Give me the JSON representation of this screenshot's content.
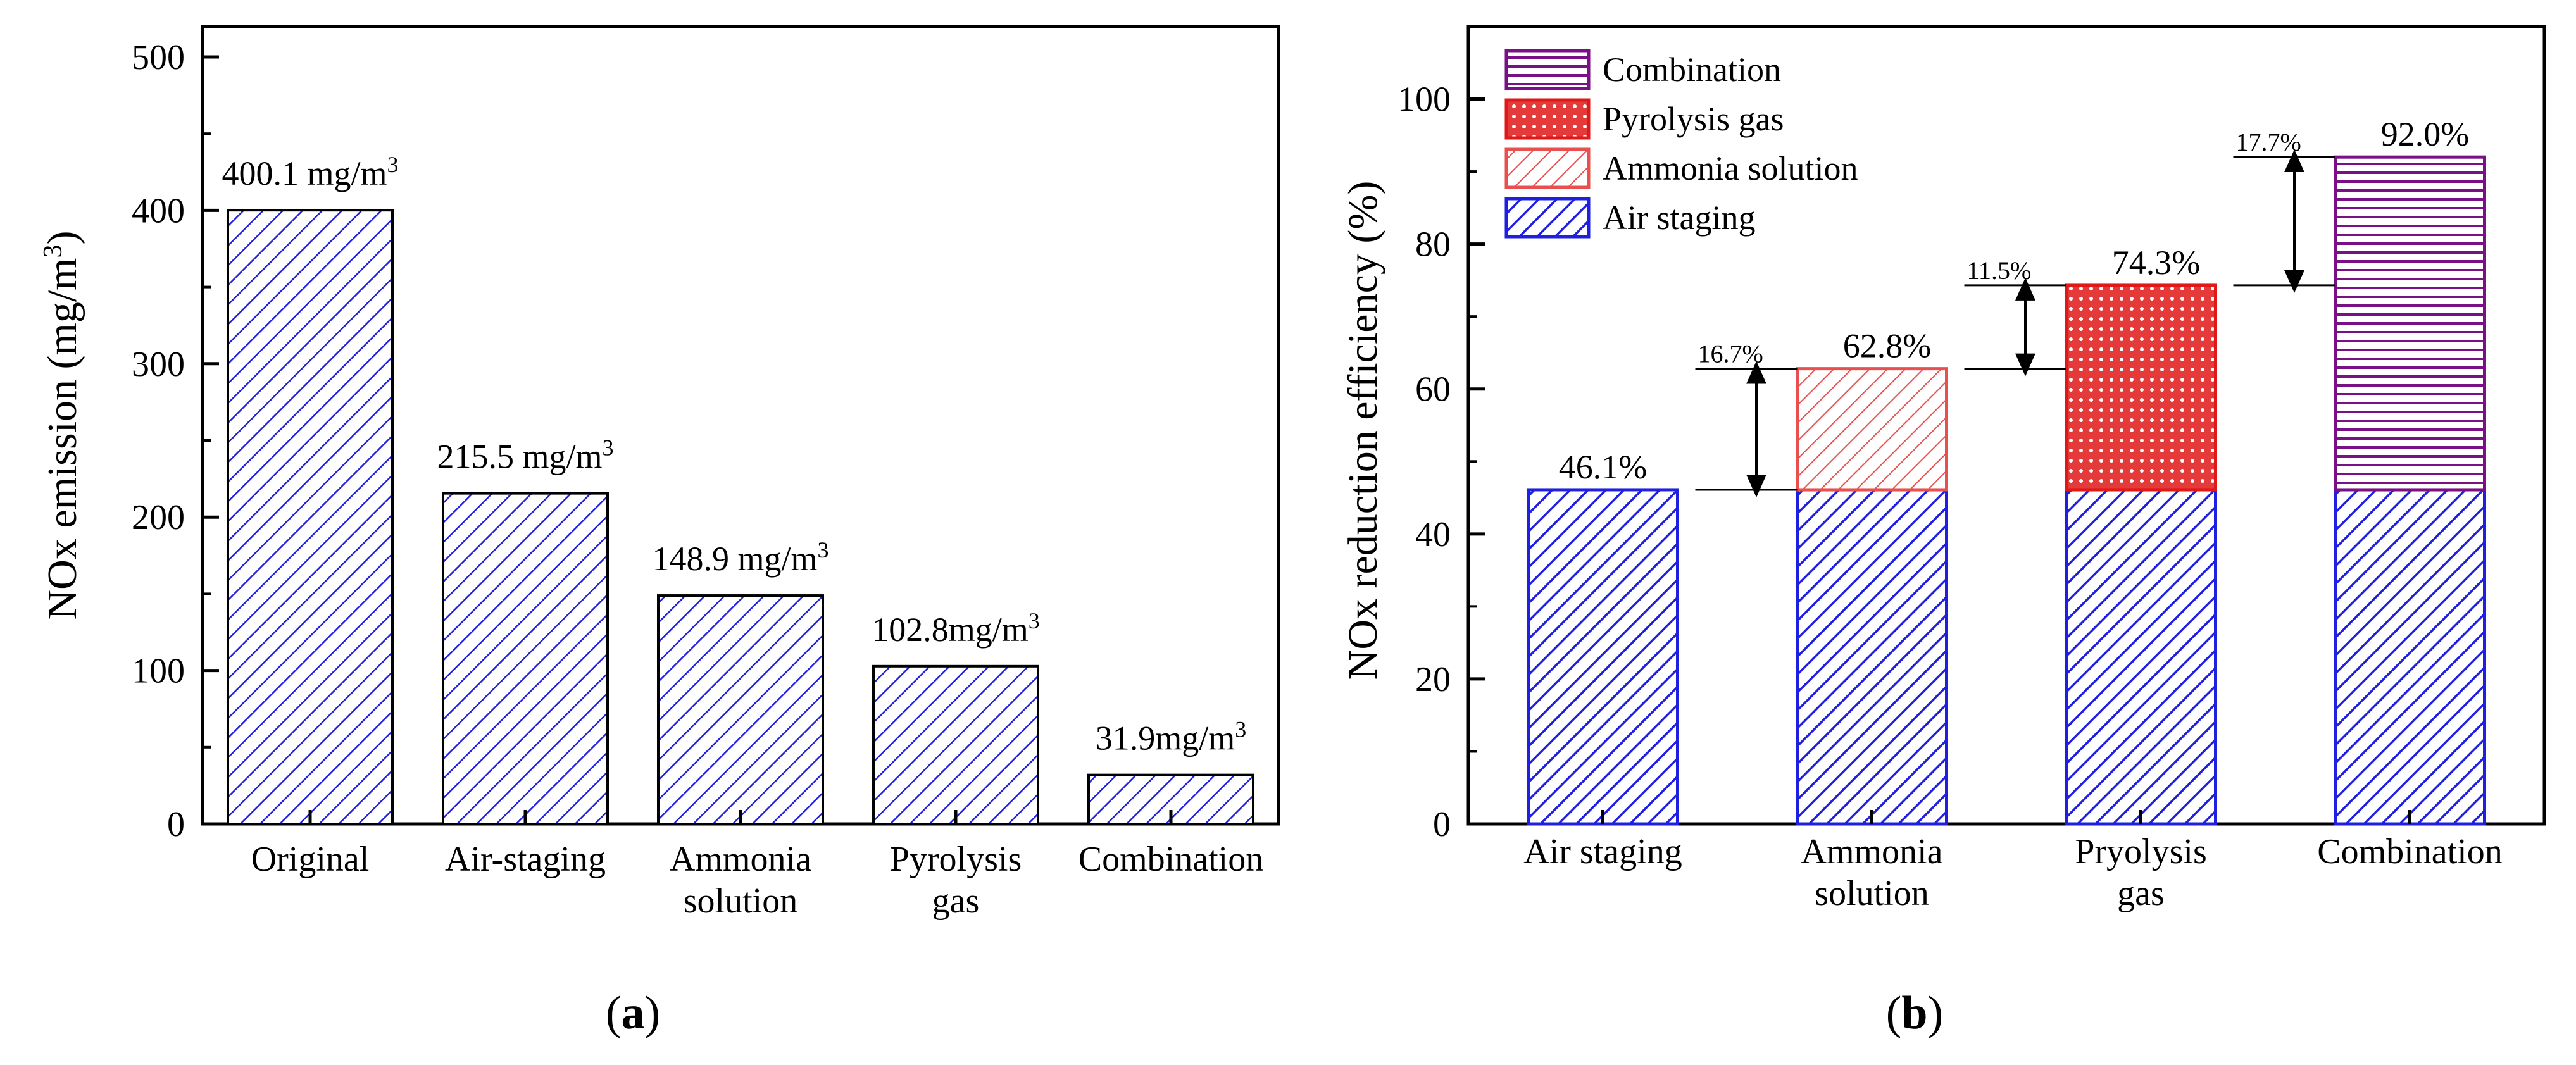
{
  "colors": {
    "blue": "#1f1fe0",
    "red": "#e01818",
    "red_light": "#e85050",
    "purple": "#7a1085",
    "axis": "#000000"
  },
  "chart_data": [
    {
      "type": "bar",
      "panel_label": "a",
      "ylabel": "NOx emission (mg/m",
      "ylabel_sup": "3",
      "ylabel_tail": ")",
      "ylim": [
        0,
        500
      ],
      "yticks": [
        0,
        100,
        200,
        300,
        400,
        500
      ],
      "categories": [
        [
          "Original"
        ],
        [
          "Air-staging"
        ],
        [
          "Ammonia",
          "solution"
        ],
        [
          "Pyrolysis",
          "gas"
        ],
        [
          "Combination"
        ]
      ],
      "values": [
        400.1,
        215.5,
        148.9,
        102.8,
        31.9
      ],
      "labels": [
        {
          "text": "400.1 mg/m",
          "sup": "3"
        },
        {
          "text": "215.5 mg/m",
          "sup": "3"
        },
        {
          "text": "148.9 mg/m",
          "sup": "3"
        },
        {
          "text": "102.8mg/m",
          "sup": "3"
        },
        {
          "text": "31.9mg/m",
          "sup": "3"
        }
      ],
      "fill": "diagonal hatch, blue"
    },
    {
      "type": "bar",
      "stacked": true,
      "panel_label": "b",
      "ylabel": "NOx reduction efficiency (%)",
      "ylim": [
        0,
        110
      ],
      "yticks": [
        0,
        20,
        40,
        60,
        80,
        100
      ],
      "categories": [
        [
          "Air staging"
        ],
        [
          "Ammonia",
          "solution"
        ],
        [
          "Pryolysis",
          "gas"
        ],
        [
          "Combination"
        ]
      ],
      "series": [
        {
          "name": "Air staging",
          "values": [
            46.1,
            46.1,
            46.1,
            46.1
          ]
        },
        {
          "name": "Ammonia solution",
          "values": [
            0,
            16.7,
            0,
            0
          ]
        },
        {
          "name": "Pyrolysis gas",
          "values": [
            0,
            0,
            28.2,
            0
          ]
        },
        {
          "name": "Combination",
          "values": [
            0,
            0,
            0,
            45.9
          ]
        }
      ],
      "totals": [
        "46.1%",
        "62.8%",
        "74.3%",
        "92.0%"
      ],
      "increments": [
        {
          "from_category": 0,
          "to_category": 1,
          "low": 46.1,
          "high": 62.8,
          "label": "16.7%"
        },
        {
          "from_category": 1,
          "to_category": 2,
          "low": 62.8,
          "high": 74.3,
          "label": "11.5%"
        },
        {
          "from_category": 2,
          "to_category": 3,
          "low": 74.3,
          "high": 92.0,
          "label": "17.7%"
        }
      ],
      "legend": [
        "Combination",
        "Pyrolysis gas",
        "Ammonia solution",
        "Air staging"
      ],
      "legend_position": "top-left"
    }
  ]
}
